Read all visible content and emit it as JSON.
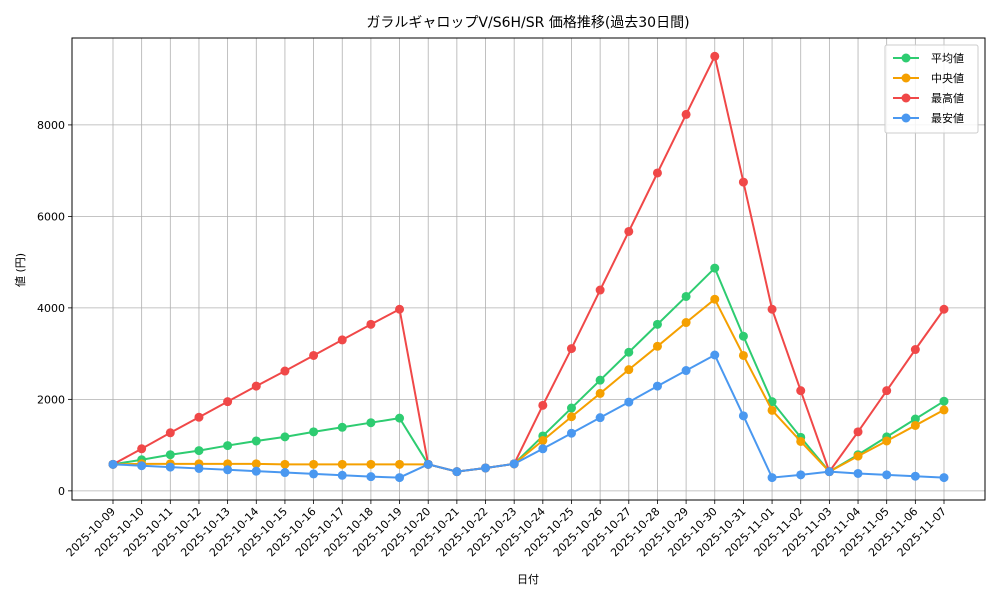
{
  "chart_data": {
    "type": "line",
    "title": "ガラルギャロップV/S6H/SR 価格推移(過去30日間)",
    "xlabel": "日付",
    "ylabel": "値 (円)",
    "ylim": [
      -200,
      9900
    ],
    "yticks": [
      0,
      2000,
      4000,
      6000,
      8000
    ],
    "grid": true,
    "legend_position": "top-right",
    "x": [
      "2025-10-09",
      "2025-10-10",
      "2025-10-11",
      "2025-10-12",
      "2025-10-13",
      "2025-10-14",
      "2025-10-15",
      "2025-10-16",
      "2025-10-17",
      "2025-10-18",
      "2025-10-19",
      "2025-10-20",
      "2025-10-21",
      "2025-10-22",
      "2025-10-23",
      "2025-10-24",
      "2025-10-25",
      "2025-10-26",
      "2025-10-27",
      "2025-10-28",
      "2025-10-29",
      "2025-10-30",
      "2025-10-31",
      "2025-11-01",
      "2025-11-02",
      "2025-11-03",
      "2025-11-04",
      "2025-11-05",
      "2025-11-06",
      "2025-11-07"
    ],
    "series": [
      {
        "name": "平均値",
        "color": "#2ecc71",
        "values": [
          580,
          680,
          790,
          880,
          990,
          1090,
          1180,
          1290,
          1390,
          1490,
          1590,
          580,
          420,
          500,
          590,
          1200,
          1810,
          2420,
          3030,
          3640,
          4250,
          4870,
          3380,
          1950,
          1170,
          420,
          790,
          1180,
          1570,
          1960
        ]
      },
      {
        "name": "中央値",
        "color": "#f5a000",
        "values": [
          580,
          590,
          590,
          590,
          590,
          590,
          580,
          580,
          580,
          580,
          580,
          580,
          420,
          500,
          590,
          1100,
          1620,
          2130,
          2650,
          3160,
          3680,
          4190,
          2960,
          1760,
          1080,
          420,
          760,
          1090,
          1430,
          1770
        ]
      },
      {
        "name": "最高値",
        "color": "#f04848",
        "values": [
          580,
          920,
          1270,
          1610,
          1950,
          2290,
          2620,
          2960,
          3300,
          3640,
          3970,
          580,
          420,
          500,
          590,
          1870,
          3110,
          4390,
          5670,
          6950,
          8230,
          9500,
          6750,
          3970,
          2190,
          420,
          1290,
          2190,
          3090,
          3970
        ]
      },
      {
        "name": "最安値",
        "color": "#4a98f0",
        "values": [
          580,
          550,
          520,
          490,
          460,
          430,
          400,
          370,
          340,
          310,
          290,
          580,
          420,
          500,
          590,
          920,
          1260,
          1600,
          1940,
          2290,
          2630,
          2970,
          1640,
          290,
          350,
          420,
          380,
          350,
          320,
          290
        ]
      }
    ]
  }
}
